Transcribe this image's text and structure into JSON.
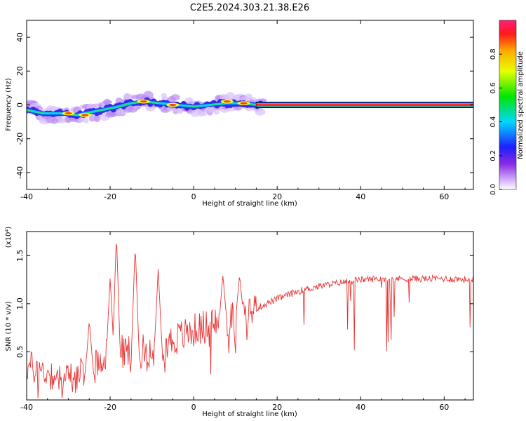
{
  "title": "C2E5.2024.303.21.38.E26",
  "chart_data": [
    {
      "type": "heatmap",
      "xlabel": "Height of straight line (km)",
      "ylabel": "Frequency (Hz)",
      "xlim": [
        -40,
        67
      ],
      "ylim": [
        -50,
        50
      ],
      "x_ticks": [
        -40,
        -20,
        0,
        20,
        40,
        60
      ],
      "y_ticks": [
        -40,
        -20,
        0,
        20,
        40
      ],
      "ridge_frequency": {
        "x": [
          -40,
          -36,
          -32,
          -28,
          -24,
          -20,
          -18,
          -15,
          -12,
          -8,
          -4,
          0,
          4,
          8,
          12,
          15,
          20,
          40,
          60,
          67
        ],
        "y": [
          -3,
          -5,
          -5,
          -6,
          -4,
          -2,
          -1,
          1,
          2,
          1,
          0,
          -1,
          0,
          1,
          1,
          0,
          0,
          0,
          0,
          0
        ]
      },
      "hot_spots": [
        {
          "x": -30,
          "y": -5
        },
        {
          "x": -26,
          "y": -6
        },
        {
          "x": -12,
          "y": 2
        },
        {
          "x": -5,
          "y": 0
        },
        {
          "x": 8,
          "y": 2
        },
        {
          "x": 12,
          "y": 1
        }
      ],
      "steady_band": {
        "x_start": 15,
        "x_end": 67,
        "y": 0
      },
      "colorbar": {
        "label": "Normalized spectral amplitude",
        "ticks": [
          "0.0",
          "0.2",
          "0.4",
          "0.6",
          "0.8"
        ],
        "range": [
          0,
          1
        ]
      },
      "grid": false,
      "legend": "none"
    },
    {
      "type": "line",
      "xlabel": "Height of straight line (km)",
      "ylabel": "SNR (10 * v/v)",
      "y_multiplier": "(x10⁴)",
      "xlim": [
        -40,
        67
      ],
      "ylim": [
        0,
        1.75
      ],
      "x_ticks": [
        -40,
        -20,
        0,
        20,
        40,
        60
      ],
      "y_ticks": [
        0.5,
        1.0,
        1.5
      ],
      "color": "#e83333",
      "baseline": {
        "x": [
          -40,
          -35,
          -30,
          -25,
          -22,
          -20,
          -15,
          -10,
          -5,
          0,
          5,
          10,
          15,
          20,
          25,
          30,
          35,
          40,
          45,
          50,
          55,
          60,
          67
        ],
        "y": [
          0.35,
          0.28,
          0.22,
          0.3,
          0.45,
          0.5,
          0.5,
          0.52,
          0.62,
          0.72,
          0.8,
          0.86,
          0.95,
          1.05,
          1.13,
          1.18,
          1.22,
          1.25,
          1.26,
          1.26,
          1.26,
          1.26,
          1.25
        ]
      },
      "peaks": [
        {
          "x": -25,
          "y": 0.83
        },
        {
          "x": -20,
          "y": 1.28
        },
        {
          "x": -18.5,
          "y": 1.73
        },
        {
          "x": -14,
          "y": 1.62
        },
        {
          "x": -8.5,
          "y": 1.36
        },
        {
          "x": 7,
          "y": 1.3
        },
        {
          "x": 11,
          "y": 1.3
        }
      ],
      "grid": false,
      "legend": "none"
    }
  ]
}
